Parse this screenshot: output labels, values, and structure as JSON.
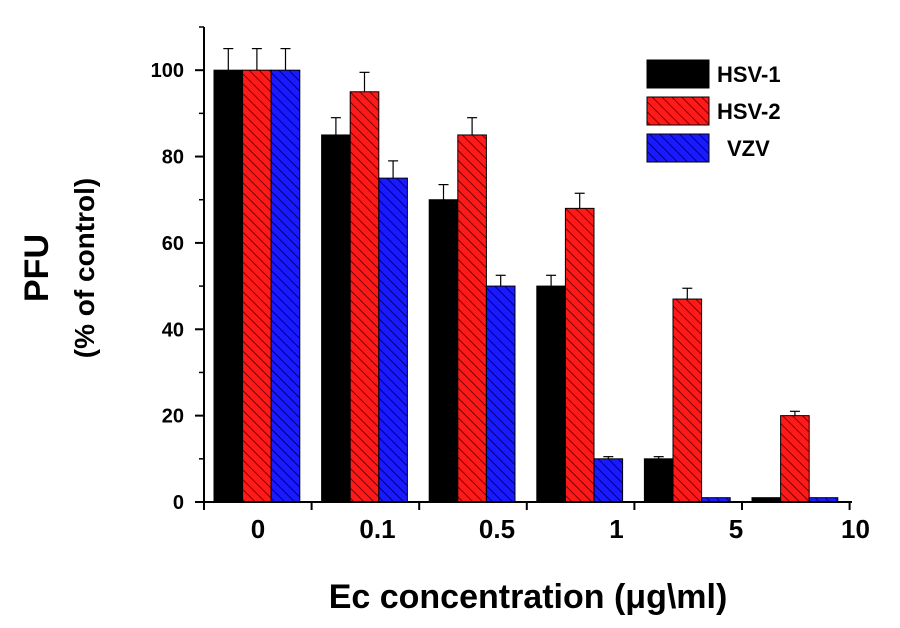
{
  "chart_data": {
    "type": "bar",
    "categories": [
      "0",
      "0.1",
      "0.5",
      "1",
      "5",
      "10"
    ],
    "series": [
      {
        "name": "HSV-1",
        "values": [
          100,
          85,
          70,
          50,
          10,
          1
        ],
        "errors": [
          5,
          4,
          3.5,
          2.5,
          0.5,
          0
        ],
        "color": "#000000",
        "pattern": "solid"
      },
      {
        "name": "HSV-2",
        "values": [
          100,
          95,
          85,
          68,
          47,
          20
        ],
        "errors": [
          5,
          4.5,
          4,
          3.5,
          2.5,
          1
        ],
        "color": "#ff1a1a",
        "pattern": "hatched"
      },
      {
        "name": "VZV",
        "values": [
          100,
          75,
          50,
          10,
          1,
          1
        ],
        "errors": [
          5,
          4,
          2.5,
          0.5,
          0,
          0
        ],
        "color": "#1a1aff",
        "pattern": "hatched"
      }
    ],
    "title": "",
    "xlabel": "Ec concentration (μg\\ml)",
    "ylabel_line1": "PFU",
    "ylabel_line2": "(% of control)",
    "ylim": [
      0,
      110
    ],
    "yticks": [
      "0",
      "20",
      "40",
      "60",
      "80",
      "100"
    ],
    "grid": false,
    "legend_position": "top-right"
  }
}
